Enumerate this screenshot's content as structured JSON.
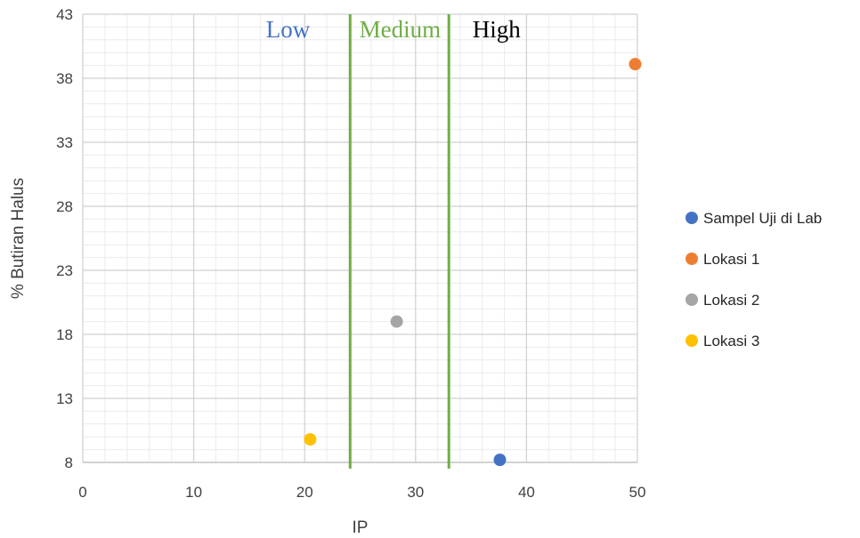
{
  "chart_data": {
    "type": "scatter",
    "title": "",
    "xlabel": "IP",
    "ylabel": "% Butiran Halus",
    "xlim": [
      0,
      50
    ],
    "ylim": [
      8,
      43
    ],
    "xticks": [
      0,
      10,
      20,
      30,
      40,
      50
    ],
    "yticks": [
      8,
      13,
      18,
      23,
      28,
      33,
      38,
      43
    ],
    "grid": true,
    "minor_grid": true,
    "legend_position": "right",
    "series": [
      {
        "name": "Sampel Uji di Lab",
        "color": "#4472C4",
        "points": [
          {
            "x": 37.6,
            "y": 8.2
          }
        ]
      },
      {
        "name": "Lokasi 1",
        "color": "#ED7D31",
        "points": [
          {
            "x": 49.8,
            "y": 39.1
          }
        ]
      },
      {
        "name": "Lokasi 2",
        "color": "#A5A5A5",
        "points": [
          {
            "x": 28.3,
            "y": 19.0
          }
        ]
      },
      {
        "name": "Lokasi 3",
        "color": "#FFC000",
        "points": [
          {
            "x": 20.5,
            "y": 9.8
          }
        ]
      }
    ],
    "reference_lines": [
      {
        "x": 24.1,
        "color": "#70AD47"
      },
      {
        "x": 33.0,
        "color": "#70AD47"
      }
    ],
    "zones": [
      {
        "label": "Low",
        "x": 18.5,
        "color": "#4472C4"
      },
      {
        "label": "Medium",
        "x": 28.6,
        "color": "#70AD47"
      },
      {
        "label": "High",
        "x": 37.3,
        "color": "#000000"
      }
    ]
  }
}
